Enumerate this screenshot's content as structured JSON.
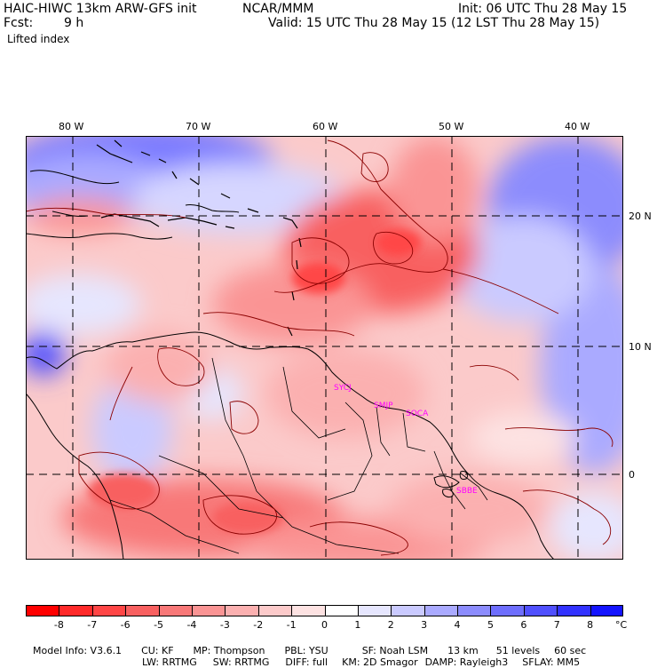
{
  "header": {
    "title_left": "HAIC-HIWC 13km ARW-GFS init",
    "title_center": "NCAR/MMM",
    "init": "Init: 06 UTC Thu 28 May 15",
    "fcst_label": "Fcst:",
    "fcst_value": "9 h",
    "valid": "Valid: 15 UTC Thu 28 May 15 (12 LST Thu 28 May 15)",
    "field": "Lifted index"
  },
  "map": {
    "lon_labels": [
      "80 W",
      "70 W",
      "60 W",
      "50 W",
      "40 W"
    ],
    "lat_labels": [
      "20 N",
      "10 N",
      "0"
    ],
    "station_labels": [
      "SYCJ",
      "SMJP",
      "SOCA",
      "SBBE"
    ],
    "colors": {
      "strong_negative": "#ff1e1e",
      "moderate_negative": "#f87878",
      "weak_negative": "#fbcaca",
      "neutral": "#ffffff",
      "weak_positive": "#cacaff",
      "strong_positive": "#2828ff",
      "border": "#000000",
      "label": "#ff00ff"
    }
  },
  "colorbar": {
    "ticks": [
      "-8",
      "-7",
      "-6",
      "-5",
      "-4",
      "-3",
      "-2",
      "-1",
      "0",
      "1",
      "2",
      "3",
      "4",
      "5",
      "6",
      "7",
      "8"
    ],
    "unit": "°C",
    "colors": [
      "#ff0000",
      "#ff2a2a",
      "#ff4646",
      "#f86060",
      "#f87878",
      "#fa9494",
      "#fbb0b0",
      "#fccaca",
      "#fde2e2",
      "#ffffff",
      "#e6e6fe",
      "#cacaff",
      "#aaaaff",
      "#8c8cfd",
      "#6e6efd",
      "#5050fe",
      "#3232ff",
      "#1414ff"
    ]
  },
  "model_info": {
    "line1": [
      "Model Info: V3.6.1",
      "CU: KF",
      "MP: Thompson",
      "PBL: YSU",
      "SF: Noah LSM",
      "13 km",
      "51 levels",
      "60 sec"
    ],
    "line2": [
      "LW: RRTMG",
      "SW: RRTMG",
      "DIFF: full",
      "KM: 2D Smagor",
      "DAMP: Rayleigh3",
      "SFLAY: MM5"
    ]
  }
}
